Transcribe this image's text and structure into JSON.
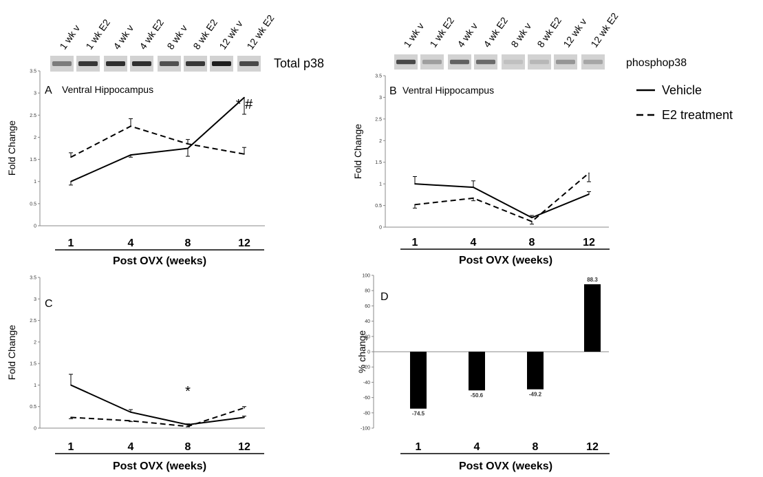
{
  "blots": [
    {
      "lanes": [
        "1 wk v",
        "1 wk E2",
        "4 wk v",
        "4 wk E2",
        "8 wk v",
        "8 wk E2",
        "12 wk v",
        "12 wk E2"
      ],
      "label": "Total p38",
      "intensity": [
        0.45,
        0.85,
        0.9,
        0.9,
        0.7,
        0.85,
        1.0,
        0.75
      ]
    },
    {
      "lanes": [
        "1 wk v",
        "1 wk E2",
        "4 wk v",
        "4 wk E2",
        "8 wk v",
        "8 wk E2",
        "12 wk v",
        "12 wk E2"
      ],
      "label": "phosphop38",
      "intensity": [
        0.75,
        0.25,
        0.6,
        0.55,
        0.05,
        0.1,
        0.3,
        0.2
      ]
    }
  ],
  "legend": [
    {
      "label": "Vehicle",
      "style": "solid"
    },
    {
      "label": "E2 treatment",
      "style": "dashed"
    }
  ],
  "chart_data": [
    {
      "panel": "A",
      "type": "line",
      "title": "Ventral Hippocampus",
      "xlabel": "Post OVX (weeks)",
      "ylabel": "Fold Change",
      "categories": [
        "1",
        "4",
        "8",
        "12"
      ],
      "ylim": [
        0,
        3.5
      ],
      "yticks": [
        "0",
        "0.5",
        "1",
        "1.5",
        "2",
        "2.5",
        "3",
        "3.5"
      ],
      "series": [
        {
          "name": "Vehicle",
          "style": "solid",
          "values": [
            1.0,
            1.6,
            1.75,
            2.9
          ],
          "errors": [
            0.08,
            0.05,
            0.18,
            0.38
          ],
          "err_dir": [
            -1,
            -1,
            -1,
            -1
          ]
        },
        {
          "name": "E2 treatment",
          "style": "dashed",
          "values": [
            1.55,
            2.25,
            1.85,
            1.62
          ],
          "errors": [
            0.1,
            0.17,
            0.1,
            0.15
          ],
          "err_dir": [
            1,
            1,
            1,
            1
          ]
        }
      ],
      "annotations": [
        {
          "text": "* #",
          "x": "12"
        }
      ]
    },
    {
      "panel": "B",
      "type": "line",
      "title": "Ventral Hippocampus",
      "xlabel": "Post OVX (weeks)",
      "ylabel": "Fold Change",
      "categories": [
        "1",
        "4",
        "8",
        "12"
      ],
      "ylim": [
        0,
        3.5
      ],
      "yticks": [
        "0",
        "0.5",
        "1",
        "1.5",
        "2",
        "2.5",
        "3",
        "3.5"
      ],
      "series": [
        {
          "name": "Vehicle",
          "style": "solid",
          "values": [
            1.0,
            0.92,
            0.22,
            0.76
          ],
          "errors": [
            0.17,
            0.15,
            0.05,
            0.06
          ],
          "err_dir": [
            1,
            1,
            1,
            1
          ]
        },
        {
          "name": "E2 treatment",
          "style": "dashed",
          "values": [
            0.52,
            0.67,
            0.13,
            1.25
          ],
          "errors": [
            0.08,
            0.06,
            0.06,
            0.2
          ],
          "err_dir": [
            -1,
            -1,
            -1,
            -1
          ]
        }
      ],
      "annotations": []
    },
    {
      "panel": "C",
      "type": "line",
      "title": "",
      "xlabel": "Post OVX (weeks)",
      "ylabel": "Fold Change",
      "categories": [
        "1",
        "4",
        "8",
        "12"
      ],
      "ylim": [
        0,
        3.5
      ],
      "yticks": [
        "0",
        "0.5",
        "1",
        "1.5",
        "2",
        "2.5",
        "3",
        "3.5"
      ],
      "series": [
        {
          "name": "Vehicle",
          "style": "solid",
          "values": [
            1.0,
            0.37,
            0.08,
            0.25
          ],
          "errors": [
            0.25,
            0.06,
            0.02,
            0.03
          ],
          "err_dir": [
            1,
            1,
            1,
            1
          ]
        },
        {
          "name": "E2 treatment",
          "style": "dashed",
          "values": [
            0.25,
            0.17,
            0.04,
            0.47
          ],
          "errors": [
            0.03,
            0.02,
            0.01,
            0.03
          ],
          "err_dir": [
            -1,
            -1,
            -1,
            1
          ]
        }
      ],
      "annotations": [
        {
          "text": "*",
          "x": "8"
        }
      ]
    },
    {
      "panel": "D",
      "type": "bar",
      "title": "",
      "xlabel": "Post OVX (weeks)",
      "ylabel": "% change",
      "categories": [
        "1",
        "4",
        "8",
        "12"
      ],
      "values": [
        -74.5,
        -50.6,
        -49.2,
        88.3
      ],
      "data_labels": [
        "-74.5",
        "-50.6",
        "-49.2",
        "88.3"
      ],
      "ylim": [
        -100,
        100
      ],
      "yticks": [
        "-100",
        "-80",
        "-60",
        "-40",
        "-20",
        "0",
        "20",
        "40",
        "60",
        "80",
        "100"
      ]
    }
  ]
}
